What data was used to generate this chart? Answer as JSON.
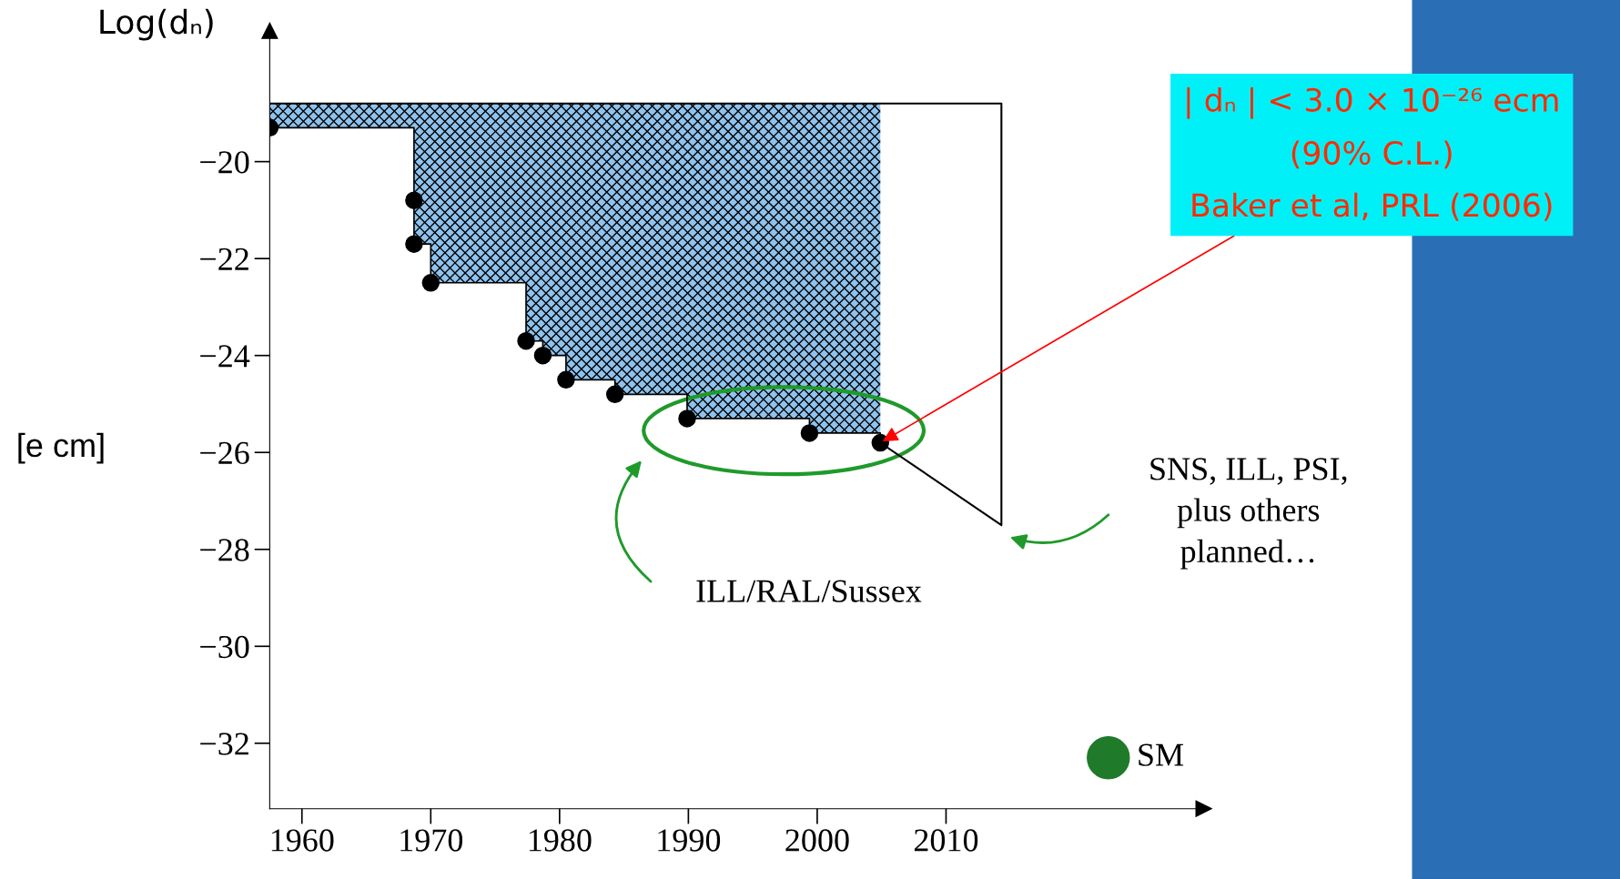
{
  "chart_data": {
    "type": "step",
    "ylabel": "Log(dₙ)",
    "x": [
      1957.5,
      1968.7,
      1968.7,
      1970.0,
      1977.4,
      1978.7,
      1980.5,
      1984.3,
      1989.9,
      1999.4,
      2004.9
    ],
    "series": [
      {
        "color": "#000000",
        "values": [
          -19.3,
          -20.8,
          -21.7,
          -22.5,
          -23.7,
          -24.0,
          -24.5,
          -24.8,
          -25.3,
          -25.6,
          -25.8
        ],
        "marker": "circle"
      },
      {
        "type": "line",
        "color": "#000000",
        "x": [
          2004.9,
          2014.3,
          2014.3,
          1957.5
        ],
        "values": [
          -25.8,
          -27.5,
          -18.8,
          -18.8
        ],
        "marker": "none"
      },
      {
        "type": "scatter",
        "name": "SM",
        "color": "#1f7a2a",
        "x": [
          2022.6
        ],
        "values": [
          -32.3
        ],
        "marker": "circle"
      }
    ],
    "xlim": [
      1957.5,
      2030
    ],
    "ylim": [
      -33.35,
      -17.3
    ],
    "xticks": [
      1960,
      1970,
      1980,
      1990,
      2000,
      2010
    ],
    "yticks": [
      {
        "value": -20,
        "label": "−20"
      },
      {
        "value": -22,
        "label": "−22"
      },
      {
        "value": -24,
        "label": "−24"
      },
      {
        "value": -26,
        "label": "−26"
      },
      {
        "value": -28,
        "label": "−28"
      },
      {
        "value": -30,
        "label": "−30"
      },
      {
        "value": -32,
        "label": "−32"
      }
    ],
    "grid": false,
    "legend": false,
    "annotations": [
      "[e cm]",
      {
        "text": "| dₙ | < 3.0 × 10⁻²⁶ ecm\n(90% C.L.)\nBaker et al, PRL (2006)",
        "x": 2004.9,
        "y": -25.8
      },
      "ILL/RAL/Sussex",
      "SNS, ILL, PSI,\nplus others\nplanned…"
    ]
  }
}
